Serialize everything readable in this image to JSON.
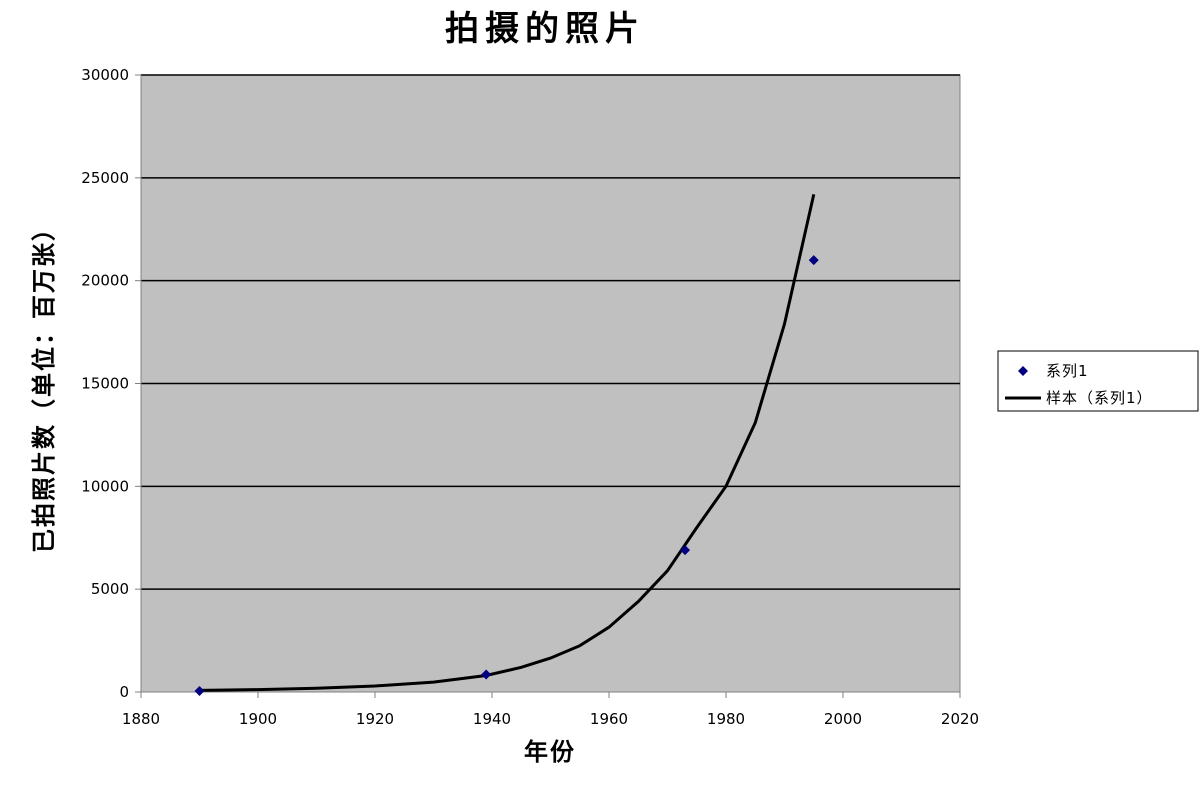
{
  "chart_data": {
    "type": "scatter",
    "title": "拍摄的照片",
    "xlabel": "年份",
    "ylabel": "已拍照片数（单位：百万张）",
    "xlim": [
      1880,
      2020
    ],
    "ylim": [
      0,
      30000
    ],
    "x_ticks": [
      1880,
      1900,
      1920,
      1940,
      1960,
      1980,
      2000,
      2020
    ],
    "y_ticks": [
      0,
      5000,
      10000,
      15000,
      20000,
      25000,
      30000
    ],
    "grid": "horizontal",
    "legend_position": "right",
    "plot_background": "#c0c0c0",
    "series": [
      {
        "name": "系列1",
        "kind": "markers",
        "marker": "diamond",
        "color": "#000080",
        "points": [
          [
            1890,
            50
          ],
          [
            1939,
            850
          ],
          [
            1973,
            6900
          ],
          [
            1995,
            21000
          ]
        ]
      },
      {
        "name": "样本（系列1）",
        "kind": "line",
        "color": "#000000",
        "points": [
          [
            1890,
            80
          ],
          [
            1900,
            115
          ],
          [
            1910,
            180
          ],
          [
            1920,
            290
          ],
          [
            1930,
            480
          ],
          [
            1939,
            800
          ],
          [
            1945,
            1200
          ],
          [
            1950,
            1650
          ],
          [
            1955,
            2250
          ],
          [
            1960,
            3150
          ],
          [
            1965,
            4400
          ],
          [
            1970,
            5900
          ],
          [
            1975,
            8000
          ],
          [
            1980,
            10000
          ],
          [
            1985,
            13100
          ],
          [
            1990,
            17900
          ],
          [
            1995,
            24200
          ]
        ]
      }
    ]
  }
}
